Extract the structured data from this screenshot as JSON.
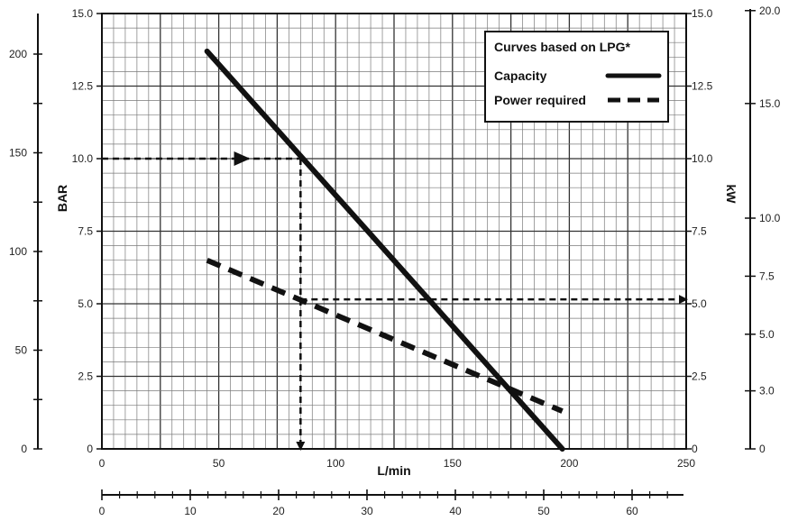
{
  "chart_data": {
    "type": "line",
    "title": "",
    "legend": {
      "title": "Curves based on LPG*",
      "placement": "top-right",
      "entries": [
        {
          "label": "Capacity",
          "style": "solid"
        },
        {
          "label": "Power required",
          "style": "dashed"
        }
      ]
    },
    "xlabel": "L/min",
    "xlim": [
      0,
      250
    ],
    "x_ticks": [
      "0",
      "50",
      "100",
      "150",
      "200",
      "250"
    ],
    "secondary_x_ticks": [
      "0",
      "10",
      "20",
      "30",
      "40",
      "50",
      "60"
    ],
    "ylim": [
      0,
      15
    ],
    "y_ticks": [
      "0",
      "2.5",
      "5.0",
      "7.5",
      "10.0",
      "12.5",
      "15.0"
    ],
    "left_outer_axis": {
      "label": "BAR",
      "ticks": [
        "0",
        "50",
        "100",
        "150",
        "200"
      ]
    },
    "right_outer_axis": {
      "label": "kW",
      "ticks": [
        "0",
        "3.0",
        "5.0",
        "7.5",
        "10.0",
        "15.0",
        "20.0"
      ]
    },
    "grid": true,
    "series": [
      {
        "name": "Capacity",
        "style": "solid",
        "x": [
          45,
          197
        ],
        "y": [
          13.7,
          0
        ]
      },
      {
        "name": "Power required",
        "style": "dashed",
        "x": [
          45,
          197
        ],
        "y": [
          6.5,
          1.3
        ]
      }
    ],
    "annotations": [
      {
        "type": "guide-arrow",
        "from": [
          0,
          10.0
        ],
        "to": [
          85,
          10.0
        ]
      },
      {
        "type": "guide-arrow",
        "from": [
          85,
          10.0
        ],
        "to": [
          85,
          0
        ]
      },
      {
        "type": "guide-arrow",
        "from": [
          85,
          5.15
        ],
        "to": [
          250,
          5.15
        ]
      }
    ]
  }
}
